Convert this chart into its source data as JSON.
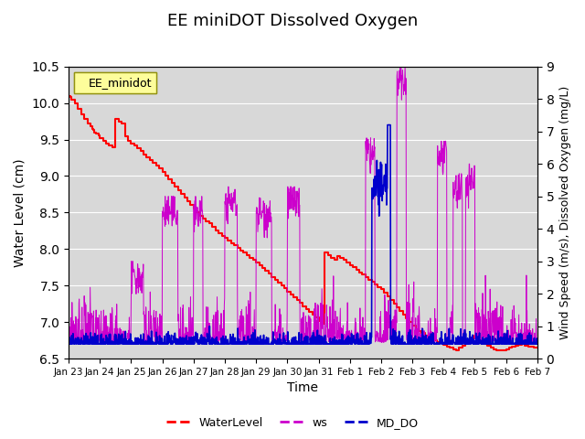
{
  "title": "EE miniDOT Dissolved Oxygen",
  "ylabel_left": "Water Level (cm)",
  "ylabel_right": "Wind Speed (m/s), Dissolved Oxygen (mg/L)",
  "xlabel": "Time",
  "ylim_left": [
    6.5,
    10.5
  ],
  "ylim_right": [
    0.0,
    9.0
  ],
  "yticks_left": [
    6.5,
    7.0,
    7.5,
    8.0,
    8.5,
    9.0,
    9.5,
    10.0,
    10.5
  ],
  "yticks_right": [
    0.0,
    1.0,
    2.0,
    3.0,
    4.0,
    5.0,
    6.0,
    7.0,
    8.0,
    9.0
  ],
  "background_color": "#e8e8e8",
  "legend_label": "EE_minidot",
  "line_colors": {
    "WaterLevel": "#ff0000",
    "ws": "#cc00cc",
    "MD_DO": "#0000cc"
  },
  "x_tick_labels": [
    "Jan 23",
    "Jan 24",
    "Jan 25",
    "Jan 26",
    "Jan 27",
    "Jan 28",
    "Jan 29",
    "Jan 30",
    "Jan 31",
    "Feb 1",
    "Feb 2",
    "Feb 3",
    "Feb 4",
    "Feb 5",
    "Feb 6",
    "Feb 7"
  ],
  "x_tick_positions": [
    0,
    1,
    2,
    3,
    4,
    5,
    6,
    7,
    8,
    9,
    10,
    11,
    12,
    13,
    14,
    15
  ],
  "water_level": {
    "x": [
      0.0,
      0.05,
      0.1,
      0.2,
      0.3,
      0.4,
      0.5,
      0.6,
      0.7,
      0.75,
      0.78,
      0.82,
      0.88,
      0.95,
      1.0,
      1.1,
      1.2,
      1.3,
      1.4,
      1.5,
      1.6,
      1.7,
      1.8,
      1.9,
      2.0,
      2.1,
      2.2,
      2.3,
      2.4,
      2.5,
      2.6,
      2.7,
      2.8,
      2.9,
      3.0,
      3.1,
      3.2,
      3.3,
      3.4,
      3.5,
      3.6,
      3.7,
      3.8,
      3.9,
      4.0,
      4.1,
      4.2,
      4.3,
      4.4,
      4.5,
      4.6,
      4.7,
      4.8,
      4.9,
      5.0,
      5.1,
      5.2,
      5.3,
      5.4,
      5.5,
      5.6,
      5.7,
      5.8,
      5.9,
      6.0,
      6.1,
      6.2,
      6.3,
      6.4,
      6.5,
      6.6,
      6.7,
      6.8,
      6.9,
      7.0,
      7.1,
      7.2,
      7.3,
      7.4,
      7.5,
      7.6,
      7.7,
      7.8,
      7.9,
      8.0,
      8.1,
      8.2,
      8.3,
      8.4,
      8.5,
      8.6,
      8.7,
      8.8,
      8.9,
      9.0,
      9.1,
      9.2,
      9.3,
      9.4,
      9.5,
      9.6,
      9.7,
      9.8,
      9.9,
      10.0,
      10.1,
      10.2,
      10.3,
      10.4,
      10.5,
      10.6,
      10.7,
      10.8,
      10.9,
      11.0,
      11.1,
      11.2,
      11.3,
      11.4,
      11.5,
      11.6,
      11.7,
      11.8,
      11.9,
      12.0,
      12.1,
      12.2,
      12.3,
      12.4,
      12.5,
      12.6,
      12.7,
      12.8,
      12.9,
      13.0,
      13.1,
      13.2,
      13.3,
      13.4,
      13.5,
      13.6,
      13.7,
      13.8,
      13.9,
      14.0,
      14.1,
      14.2,
      14.3,
      14.4,
      14.5,
      14.6,
      14.7,
      14.8,
      14.9,
      15.0
    ],
    "y": [
      10.1,
      10.08,
      10.05,
      10.0,
      9.92,
      9.85,
      9.78,
      9.72,
      9.68,
      9.65,
      9.63,
      9.6,
      9.58,
      9.56,
      9.52,
      9.48,
      9.45,
      9.42,
      9.4,
      9.78,
      9.75,
      9.72,
      9.55,
      9.48,
      9.45,
      9.42,
      9.38,
      9.35,
      9.3,
      9.26,
      9.22,
      9.18,
      9.15,
      9.1,
      9.05,
      9.0,
      8.95,
      8.9,
      8.85,
      8.8,
      8.75,
      8.7,
      8.65,
      8.6,
      8.55,
      8.5,
      8.45,
      8.42,
      8.38,
      8.35,
      8.3,
      8.25,
      8.22,
      8.18,
      8.15,
      8.12,
      8.08,
      8.05,
      8.02,
      7.98,
      7.95,
      7.92,
      7.88,
      7.85,
      7.82,
      7.78,
      7.74,
      7.7,
      7.66,
      7.62,
      7.58,
      7.54,
      7.5,
      7.46,
      7.42,
      7.38,
      7.34,
      7.3,
      7.26,
      7.22,
      7.18,
      7.14,
      7.1,
      7.06,
      7.02,
      6.98,
      7.95,
      7.92,
      7.88,
      7.85,
      7.9,
      7.88,
      7.85,
      7.82,
      7.78,
      7.75,
      7.72,
      7.68,
      7.65,
      7.62,
      7.58,
      7.55,
      7.52,
      7.48,
      7.45,
      7.4,
      7.35,
      7.3,
      7.25,
      7.2,
      7.15,
      7.1,
      7.05,
      7.0,
      6.95,
      6.9,
      6.88,
      6.85,
      6.82,
      6.79,
      6.77,
      6.75,
      6.73,
      6.71,
      6.69,
      6.67,
      6.65,
      6.63,
      6.62,
      6.65,
      6.68,
      6.72,
      6.75,
      6.78,
      6.82,
      6.75,
      6.72,
      6.7,
      6.68,
      6.65,
      6.63,
      6.62,
      6.61,
      6.62,
      6.63,
      6.65,
      6.67,
      6.68,
      6.69,
      6.7,
      6.68,
      6.67,
      6.66,
      6.65,
      6.65
    ]
  }
}
